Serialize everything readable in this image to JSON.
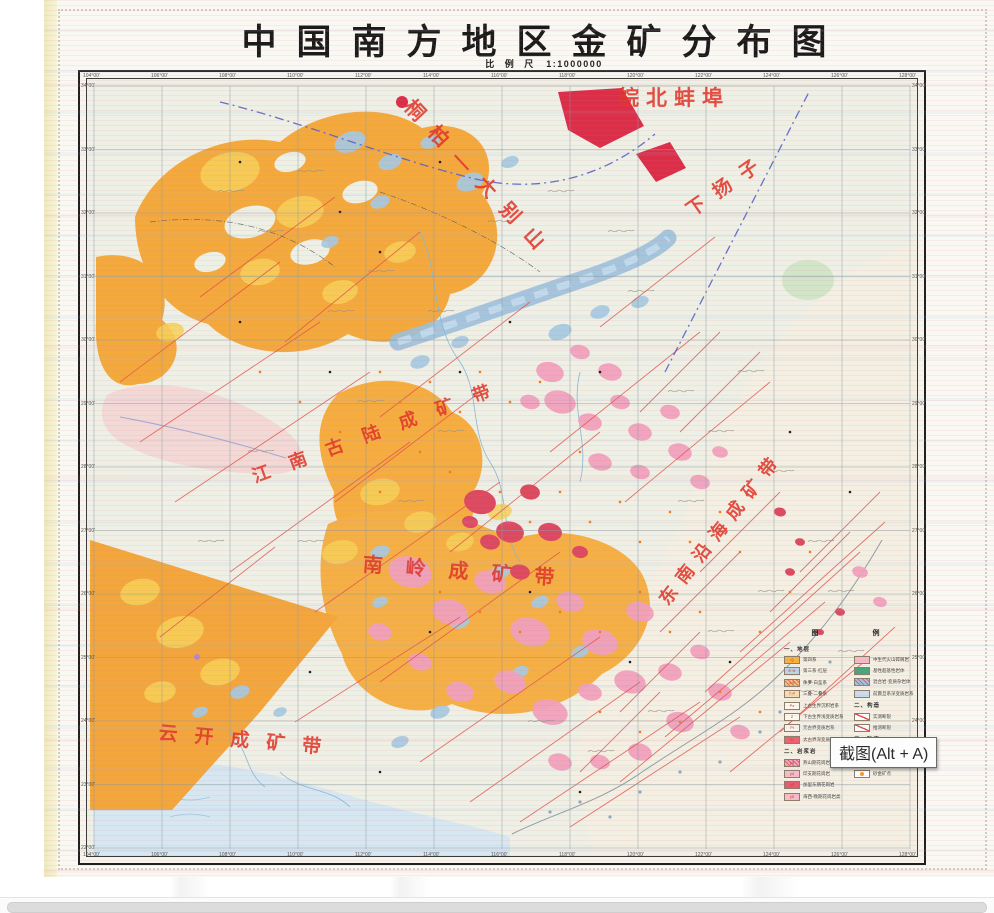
{
  "title": "中国南方地区金矿分布图",
  "scale": {
    "label": "比 例 尺",
    "value": "1:1000000"
  },
  "tooltip": {
    "text": "截图(Alt + A)",
    "shortcut": "Alt + A"
  },
  "map": {
    "labels": [
      {
        "text": "皖北蚌埠"
      },
      {
        "text": "桐柏—大别山"
      },
      {
        "text": "下扬子"
      },
      {
        "text": "江南古陆成矿带"
      },
      {
        "text": "南岭成矿带"
      },
      {
        "text": "东南沿海成矿带"
      },
      {
        "text": "云开成矿带"
      }
    ],
    "lon_ticks": [
      "104°00'",
      "106°00'",
      "108°00'",
      "110°00'",
      "112°00'",
      "114°00'",
      "116°00'",
      "118°00'",
      "120°00'",
      "122°00'",
      "124°00'",
      "126°00'",
      "128°00'"
    ],
    "lat_ticks": [
      "34°00'",
      "33°00'",
      "32°00'",
      "31°00'",
      "30°00'",
      "29°00'",
      "28°00'",
      "27°00'",
      "26°00'",
      "25°00'",
      "24°00'",
      "23°00'",
      "22°00'"
    ]
  },
  "legend": {
    "title": "图 例",
    "columns": [
      {
        "entries": [
          {
            "type": "header",
            "text": "一、地层"
          },
          {
            "type": "item",
            "swatch": "#f5b23c",
            "code": "Q",
            "label": "第四系"
          },
          {
            "type": "item",
            "swatch": "#bcd4ea",
            "code": "E·N",
            "label": "第三系·红层"
          },
          {
            "type": "item",
            "swatch": "#f3c97e",
            "hatch": true,
            "code": "J·K",
            "label": "侏罗-白垩系"
          },
          {
            "type": "item",
            "swatch": "#f6ddb4",
            "code": "T·P",
            "label": "三叠-二叠系"
          },
          {
            "type": "item",
            "swatch": "#fdf8ee",
            "code": "Pz",
            "label": "上古生界沉积岩系"
          },
          {
            "type": "item",
            "swatch": "#fdf8ee",
            "code": "Z",
            "label": "下古生界浅变质岩系"
          },
          {
            "type": "item",
            "swatch": "#fdf8ee",
            "code": "Pt",
            "label": "元古界变质岩系"
          },
          {
            "type": "item",
            "swatch": "#ee5e72",
            "code": "Ar",
            "label": "太古界深变质岩系"
          },
          {
            "type": "header",
            "text": "二、岩浆岩"
          },
          {
            "type": "item",
            "swatch": "#f2aac2",
            "hatch": true,
            "code": "γ5",
            "label": "燕山期花岗岩"
          },
          {
            "type": "item",
            "swatch": "#f6bccb",
            "code": "γ4",
            "label": "印支期花岗岩"
          },
          {
            "type": "item",
            "swatch": "#e85a72",
            "code": "γ3",
            "label": "加里东期花岗岩"
          },
          {
            "type": "item",
            "swatch": "#f6bccb",
            "code": "γδ",
            "label": "海西-晚期花岗岩类"
          }
        ]
      },
      {
        "entries": [
          {
            "type": "item",
            "swatch": "#f3bac8",
            "label": "中生代火山碎屑岩"
          },
          {
            "type": "item",
            "swatch": "#41a97c",
            "label": "基性超基性岩体"
          },
          {
            "type": "item",
            "swatch": "#a3c6e2",
            "hatch": true,
            "label": "混合岩·变质杂岩体"
          },
          {
            "type": "item",
            "swatch": "#c9dbec",
            "label": "前震旦系深变质岩系"
          },
          {
            "type": "header",
            "text": "二、构造"
          },
          {
            "type": "line",
            "label": "实测断裂"
          },
          {
            "type": "line",
            "label": "推测断裂"
          },
          {
            "type": "header",
            "text": "三、矿产"
          },
          {
            "type": "item",
            "swatch": "#f59a2d",
            "label": "岩金矿床(点)"
          },
          {
            "type": "item",
            "swatch": "#ffffff",
            "label": "伴生金矿床"
          },
          {
            "type": "dot",
            "swatch": "#f59a2d",
            "label": "砂金矿点"
          }
        ]
      }
    ]
  },
  "colors": {
    "accent_red": "#e0372a",
    "fault_red": "#e0504a",
    "boundary_blue": "#5560c4",
    "orange": "#f4a93c",
    "yellow": "#f6d058",
    "pink": "#f0a0bc",
    "crimson": "#dc4a62",
    "pale_blue": "#a6c9e2",
    "paper": "#faf8f3",
    "frame": "#1f1f1f",
    "scrollbar": "#dcdcdc"
  }
}
